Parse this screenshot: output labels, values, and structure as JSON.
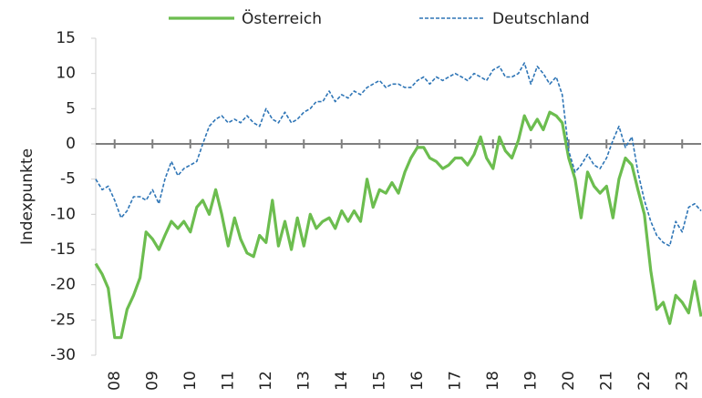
{
  "chart_data": {
    "type": "line",
    "y_label": "Indexpunkte",
    "legend": "top",
    "x": [
      2008,
      2008.17,
      2008.33,
      2008.5,
      2008.67,
      2008.83,
      2009,
      2009.17,
      2009.33,
      2009.5,
      2009.67,
      2009.83,
      2010,
      2010.17,
      2010.33,
      2010.5,
      2010.67,
      2010.83,
      2011,
      2011.17,
      2011.33,
      2011.5,
      2011.67,
      2011.83,
      2012,
      2012.17,
      2012.33,
      2012.5,
      2012.67,
      2012.83,
      2013,
      2013.17,
      2013.33,
      2013.5,
      2013.67,
      2013.83,
      2014,
      2014.17,
      2014.33,
      2014.5,
      2014.67,
      2014.83,
      2015,
      2015.17,
      2015.33,
      2015.5,
      2015.67,
      2015.83,
      2016,
      2016.17,
      2016.33,
      2016.5,
      2016.67,
      2016.83,
      2017,
      2017.17,
      2017.33,
      2017.5,
      2017.67,
      2017.83,
      2018,
      2018.17,
      2018.33,
      2018.5,
      2018.67,
      2018.83,
      2019,
      2019.17,
      2019.33,
      2019.5,
      2019.67,
      2019.83,
      2020,
      2020.17,
      2020.33,
      2020.5,
      2020.67,
      2020.83,
      2021,
      2021.17,
      2021.33,
      2021.5,
      2021.67,
      2021.83,
      2022,
      2022.17,
      2022.33,
      2022.5,
      2022.67,
      2022.83,
      2023,
      2023.17,
      2023.33,
      2023.5,
      2023.67,
      2023.83,
      2024
    ],
    "series": [
      {
        "name": "Österreich",
        "color": "#6cbd4f",
        "dashed": false,
        "values": [
          -17,
          -18.5,
          -20.5,
          -27.5,
          -27.5,
          -23.5,
          -21.5,
          -19,
          -12.5,
          -13.5,
          -15,
          -13,
          -11,
          -12,
          -11,
          -12.5,
          -9,
          -8,
          -10,
          -6.5,
          -10,
          -14.5,
          -10.5,
          -13.5,
          -15.5,
          -16,
          -13,
          -14,
          -8,
          -14.5,
          -11,
          -15,
          -10.5,
          -14.5,
          -10,
          -12,
          -11,
          -10.5,
          -12,
          -9.5,
          -11,
          -9.5,
          -11,
          -5,
          -9,
          -6.5,
          -7,
          -5.5,
          -7,
          -4,
          -2,
          -0.5,
          -0.5,
          -2,
          -2.5,
          -3.5,
          -3,
          -2,
          -2,
          -3,
          -1.5,
          1,
          -2,
          -3.5,
          1,
          -1,
          -2,
          0.5,
          4,
          2,
          3.5,
          2,
          4.5,
          4,
          3,
          -2,
          -5,
          -10.5,
          -4,
          -6,
          -7,
          -6,
          -10.5,
          -5,
          -2,
          -3,
          -6.5,
          -10,
          -18,
          -23.5,
          -22.5,
          -25.5,
          -21.5,
          -22.5,
          -24,
          -19.5,
          -24.5
        ]
      },
      {
        "name": "Deutschland",
        "color": "#2e75b6",
        "dashed": true,
        "values": [
          -5,
          -6.5,
          -6,
          -8,
          -10.5,
          -9.5,
          -7.5,
          -7.5,
          -8,
          -6.5,
          -8.5,
          -5,
          -2.5,
          -4.5,
          -3.5,
          -3,
          -2.5,
          0,
          2.5,
          3.5,
          4,
          3,
          3.5,
          3,
          4,
          3,
          2.5,
          5,
          3.5,
          3,
          4.5,
          3,
          3.5,
          4.5,
          5,
          6,
          6,
          7.5,
          6,
          7,
          6.5,
          7.5,
          7,
          8,
          8.5,
          9,
          8,
          8.5,
          8.5,
          8,
          8,
          9,
          9.5,
          8.5,
          9.5,
          9,
          9.5,
          10,
          9.5,
          9,
          10,
          9.5,
          9,
          10.5,
          11,
          9.5,
          9.5,
          10,
          11.5,
          8.5,
          11,
          10,
          8.5,
          9.5,
          7,
          -1,
          -4,
          -3,
          -1.5,
          -3,
          -3.5,
          -2,
          0.5,
          2.5,
          -0.5,
          1,
          -4,
          -8,
          -11,
          -13,
          -14,
          -14.5,
          -11,
          -12.5,
          -9,
          -8.5,
          -9.5
        ]
      }
    ],
    "xlim": [
      2008,
      2024
    ],
    "xticks": [
      {
        "value": 2008.5,
        "label": "08"
      },
      {
        "value": 2009.5,
        "label": "09"
      },
      {
        "value": 2010.5,
        "label": "10"
      },
      {
        "value": 2011.5,
        "label": "11"
      },
      {
        "value": 2012.5,
        "label": "12"
      },
      {
        "value": 2013.5,
        "label": "13"
      },
      {
        "value": 2014.5,
        "label": "14"
      },
      {
        "value": 2015.5,
        "label": "15"
      },
      {
        "value": 2016.5,
        "label": "16"
      },
      {
        "value": 2017.5,
        "label": "17"
      },
      {
        "value": 2018.5,
        "label": "18"
      },
      {
        "value": 2019.5,
        "label": "19"
      },
      {
        "value": 2020.5,
        "label": "20"
      },
      {
        "value": 2021.5,
        "label": "21"
      },
      {
        "value": 2022.5,
        "label": "22"
      },
      {
        "value": 2023.5,
        "label": "23"
      }
    ],
    "ylim": [
      -30,
      15
    ],
    "yticks": [
      15,
      10,
      5,
      0,
      -5,
      -10,
      -15,
      -20,
      -25,
      -30
    ],
    "grid": false
  }
}
